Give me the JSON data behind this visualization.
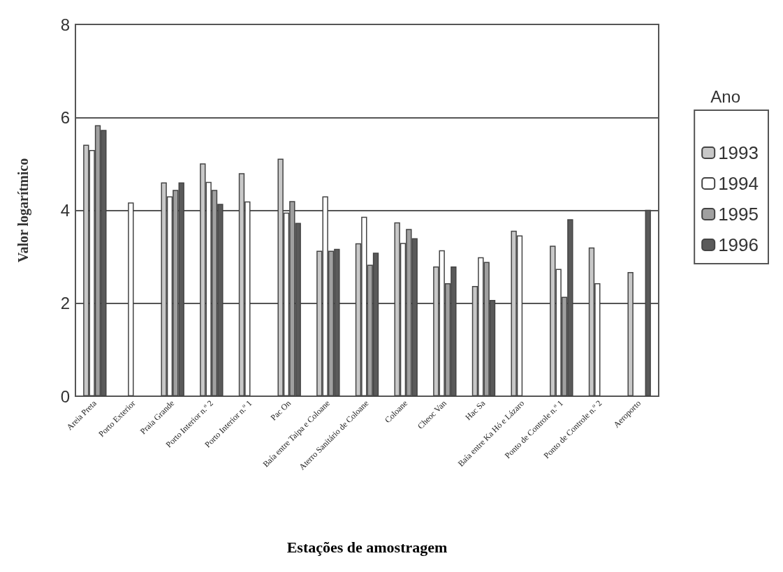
{
  "chart_data": {
    "type": "bar",
    "xlabel": "Estações de amostragem",
    "ylabel": "Valor logarítmico",
    "legend_title": "Ano",
    "legend": "right",
    "grid": "y",
    "ylim": [
      0,
      8
    ],
    "yticks": [
      0,
      2,
      4,
      6,
      8
    ],
    "categories": [
      "Areia Preta",
      "Porto Exterior",
      "Praia Grande",
      "Porto Interior n.º 2",
      "Porto Interior n.º 1",
      "Pac On",
      "Baía entre Taipa e Coloane",
      "Aterro Sanitário de Coloane",
      "Coloane",
      "Cheoc Van",
      "Hac Sa",
      "Baía entre Ka Hó e Lázaro",
      "Ponto de Controle n.º 1",
      "Ponto de Controle n.º 2",
      "Aeroporto"
    ],
    "series": [
      {
        "name": "1993",
        "color": "#c8c8c8",
        "values": [
          5.41,
          null,
          4.6,
          5.01,
          4.8,
          5.11,
          3.13,
          3.29,
          3.74,
          2.79,
          2.37,
          3.56,
          3.24,
          3.2,
          2.67
        ]
      },
      {
        "name": "1994",
        "color": "#ffffff",
        "values": [
          5.3,
          4.17,
          4.3,
          4.61,
          4.19,
          3.95,
          4.3,
          3.86,
          3.3,
          3.14,
          2.99,
          3.46,
          2.74,
          2.43,
          null
        ]
      },
      {
        "name": "1995",
        "color": "#a0a0a0",
        "values": [
          5.83,
          null,
          4.44,
          4.44,
          null,
          4.2,
          3.13,
          2.83,
          3.6,
          2.43,
          2.89,
          null,
          2.14,
          null,
          null
        ]
      },
      {
        "name": "1996",
        "color": "#5a5a5a",
        "values": [
          5.73,
          null,
          4.6,
          4.14,
          null,
          3.73,
          3.17,
          3.09,
          3.4,
          2.79,
          2.07,
          null,
          3.81,
          null,
          4.01
        ]
      }
    ]
  }
}
